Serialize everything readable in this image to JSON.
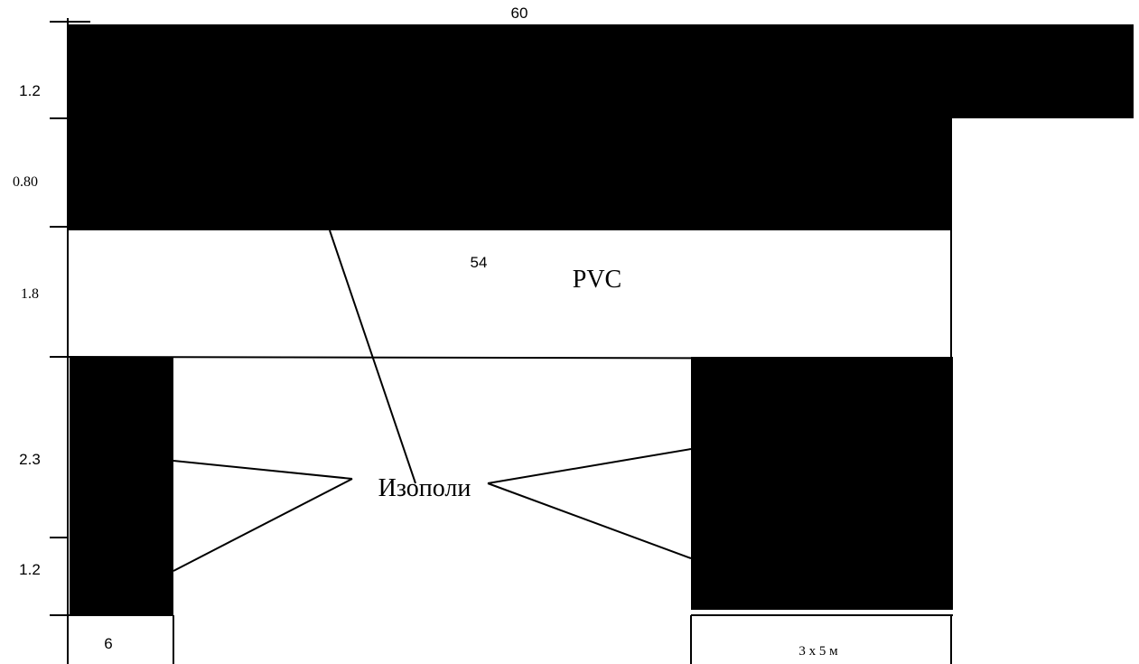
{
  "dimensions": {
    "top_width": "60",
    "top_height": "1.2",
    "beam_height": "0.80",
    "band_height": "1.8",
    "band_width": "54",
    "left_upper": "2.3",
    "left_lower": "1.2",
    "left_width": "6",
    "right_width": "3 x 5 м"
  },
  "materials": {
    "band": "PVC",
    "insulation": "Изополи"
  }
}
